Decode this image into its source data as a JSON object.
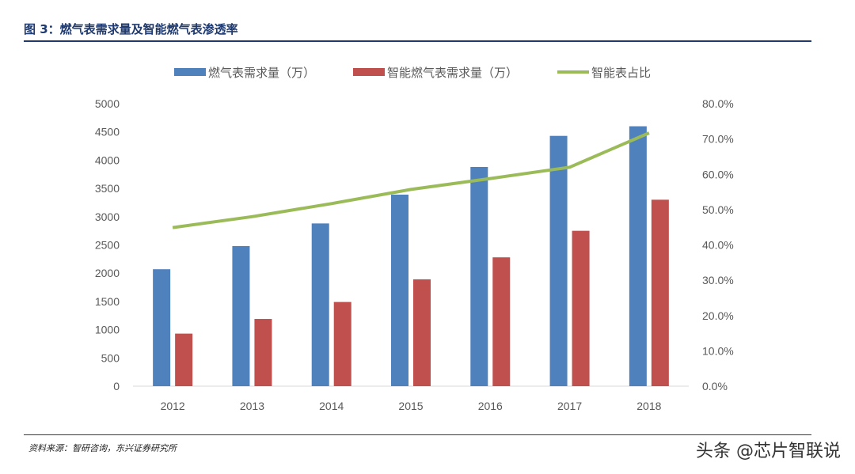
{
  "header": {
    "figure_title": "图 3：燃气表需求量及智能燃气表渗透率"
  },
  "footer": {
    "source": "资料来源：智研咨询，东兴证券研究所",
    "watermark": "头条 @芯片智联说"
  },
  "colors": {
    "series_blue": "#4f81bd",
    "series_red": "#c0504d",
    "series_green": "#9bbb59",
    "title": "#1f3a6e"
  },
  "chart_data": {
    "type": "bar",
    "categories": [
      "2012",
      "2013",
      "2014",
      "2015",
      "2016",
      "2017",
      "2018"
    ],
    "series": [
      {
        "name": "燃气表需求量（万）",
        "type": "bar",
        "axis": "left",
        "values": [
          2070,
          2480,
          2880,
          3390,
          3880,
          4430,
          4600
        ]
      },
      {
        "name": "智能燃气表需求量（万）",
        "type": "bar",
        "axis": "left",
        "values": [
          930,
          1190,
          1490,
          1890,
          2280,
          2750,
          3300
        ]
      },
      {
        "name": "智能表占比",
        "type": "line",
        "axis": "right",
        "values": [
          0.449,
          0.48,
          0.517,
          0.557,
          0.588,
          0.62,
          0.717
        ]
      }
    ],
    "y_left": {
      "min": 0,
      "max": 5000,
      "step": 500,
      "ticks": [
        "0",
        "500",
        "1000",
        "1500",
        "2000",
        "2500",
        "3000",
        "3500",
        "4000",
        "4500",
        "5000"
      ]
    },
    "y_right": {
      "min": 0,
      "max": 0.8,
      "step": 0.1,
      "ticks": [
        "0.0%",
        "10.0%",
        "20.0%",
        "30.0%",
        "40.0%",
        "50.0%",
        "60.0%",
        "70.0%",
        "80.0%"
      ]
    },
    "legend_position": "top",
    "grid": false
  }
}
